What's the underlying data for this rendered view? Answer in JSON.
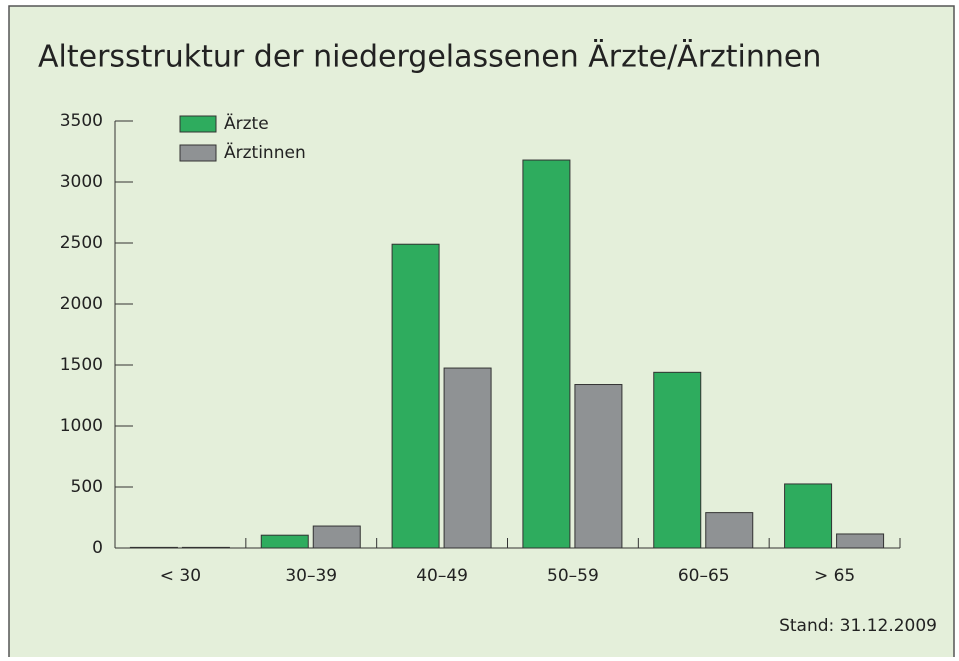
{
  "chart_data": {
    "type": "bar",
    "title": "Altersstruktur der niedergelassenen Ärzte/Ärztinnen",
    "categories": [
      "< 30",
      "30–39",
      "40–49",
      "50–59",
      "60–65",
      "> 65"
    ],
    "series": [
      {
        "name": "Ärzte",
        "color": "#2eac5e",
        "values": [
          5,
          105,
          2490,
          3180,
          1440,
          525
        ]
      },
      {
        "name": "Ärztinnen",
        "color": "#8f9294",
        "values": [
          5,
          180,
          1475,
          1340,
          290,
          115
        ]
      }
    ],
    "ylim": [
      0,
      3500
    ],
    "yticks": [
      0,
      500,
      1000,
      1500,
      2000,
      2500,
      3000,
      3500
    ],
    "note": "Stand: 31.12.2009"
  }
}
